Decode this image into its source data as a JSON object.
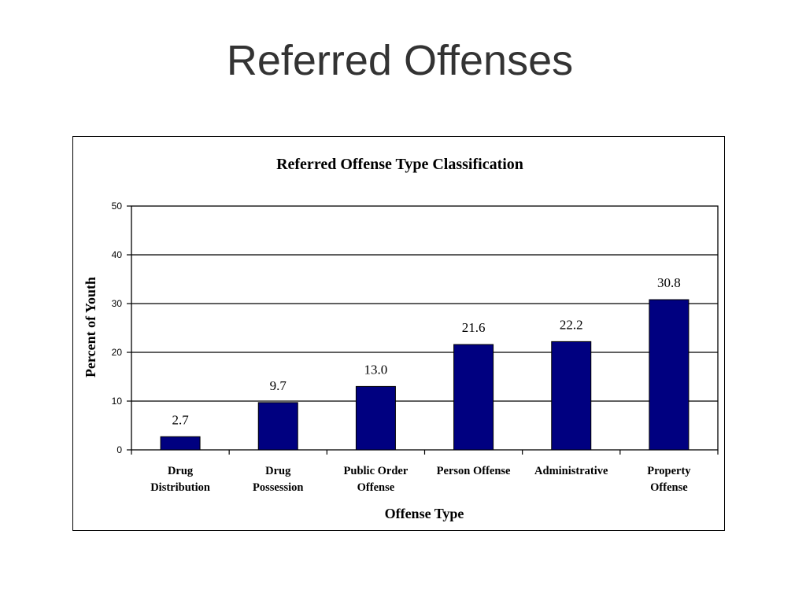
{
  "slide": {
    "title": "Referred Offenses"
  },
  "colors": {
    "bar": "#000080",
    "axis": "#000000",
    "grid": "#000000",
    "title": "#333333"
  },
  "chart_data": {
    "type": "bar",
    "title": "Referred Offense Type Classification",
    "xlabel": "Offense Type",
    "ylabel": "Percent of Youth",
    "ylim": [
      0,
      50
    ],
    "yticks": [
      0,
      10,
      20,
      30,
      40,
      50
    ],
    "grid": true,
    "categories": [
      [
        "Drug",
        "Distribution"
      ],
      [
        "Drug",
        "Possession"
      ],
      [
        "Public Order",
        "Offense"
      ],
      [
        "Person Offense"
      ],
      [
        "Administrative"
      ],
      [
        "Property",
        "Offense"
      ]
    ],
    "values": [
      2.7,
      9.7,
      13.0,
      21.6,
      22.2,
      30.8
    ],
    "data_labels": [
      "2.7",
      "9.7",
      "13.0",
      "21.6",
      "22.2",
      "30.8"
    ]
  }
}
